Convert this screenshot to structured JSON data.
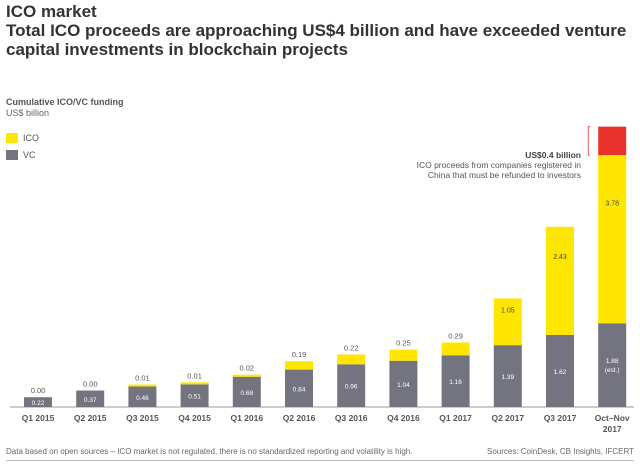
{
  "header": {
    "title": "ICO market",
    "subtitle": "Total ICO proceeds are approaching US$4 billion and have exceeded venture capital investments in blockchain projects"
  },
  "footer": {
    "note": "Data based on open sources – ICO market is not regulated, there is no standardized reporting and volatility is high.",
    "sources": "Sources: CoinDesk, CB Insights, IFCERT"
  },
  "chart_data": {
    "type": "bar",
    "stacked": true,
    "title": "Cumulative ICO/VC funding",
    "ylabel": "US$ billion",
    "legend_placement": "top-left",
    "categories": [
      "Q1 2015",
      "Q2 2015",
      "Q3 2015",
      "Q4 2015",
      "Q1 2016",
      "Q2 2016",
      "Q3 2016",
      "Q4 2016",
      "Q1 2017",
      "Q2 2017",
      "Q3 2017",
      "Oct–Nov 2017"
    ],
    "series": [
      {
        "name": "VC",
        "color": "#747480",
        "values": [
          0.22,
          0.37,
          0.46,
          0.51,
          0.68,
          0.84,
          0.96,
          1.04,
          1.16,
          1.39,
          1.62,
          1.88
        ],
        "labels": [
          "0.22",
          "0.37",
          "0.46",
          "0.51",
          "0.68",
          "0.84",
          "0.96",
          "1.04",
          "1.16",
          "1.39",
          "1.62",
          "1.88 (est.)"
        ]
      },
      {
        "name": "ICO",
        "color": "#ffe600",
        "values": [
          0.0,
          0.0,
          0.01,
          0.01,
          0.02,
          0.19,
          0.22,
          0.25,
          0.29,
          1.05,
          2.43,
          3.78
        ],
        "labels": [
          "0.00",
          "0.00",
          "0.01",
          "0.01",
          "0.02",
          "0.19",
          "0.22",
          "0.25",
          "0.29",
          "1.05",
          "2.43",
          "3.78"
        ]
      },
      {
        "color": "#e8312a",
        "values": [
          0,
          0,
          0,
          0,
          0,
          0,
          0,
          0,
          0,
          0,
          0,
          0.4
        ]
      }
    ],
    "annotation": {
      "title": "US$0.4 billion",
      "text_line1": "ICO proceeds from companies registered in",
      "text_line2": "China that must be refunded to investors"
    },
    "grid": false
  }
}
